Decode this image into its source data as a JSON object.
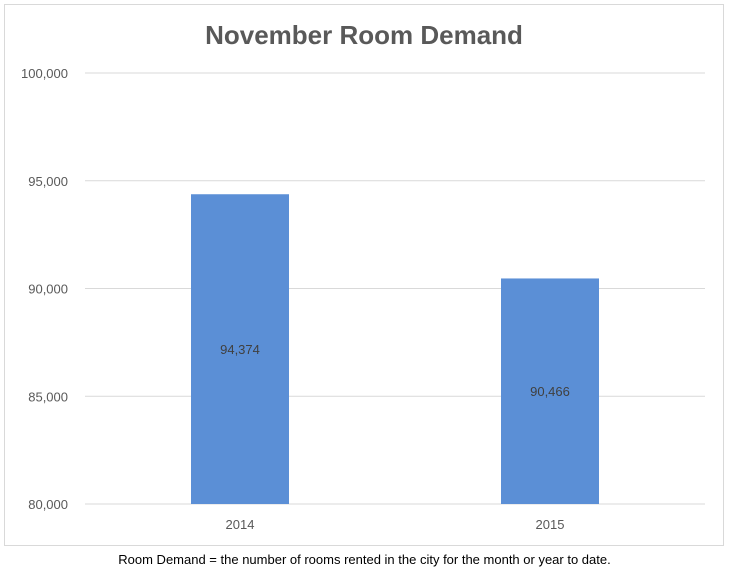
{
  "chart_data": {
    "type": "bar",
    "title": "November Room Demand",
    "xlabel": "",
    "ylabel": "",
    "categories": [
      "2014",
      "2015"
    ],
    "values": [
      94374,
      90466
    ],
    "data_labels": [
      "94,374",
      "90,466"
    ],
    "ylim": [
      80000,
      100000
    ],
    "yticks": [
      80000,
      85000,
      90000,
      95000,
      100000
    ],
    "ytick_labels": [
      "80,000",
      "85,000",
      "90,000",
      "95,000",
      "100,000"
    ],
    "grid": true,
    "legend": "none",
    "colors": {
      "bar": "#5b8fd6",
      "grid": "#d9d9d9",
      "title": "#595959",
      "tick_text": "#595959",
      "data_label": "#404040"
    }
  },
  "caption": "Room Demand = the number of rooms rented in the city for the month or year to date."
}
